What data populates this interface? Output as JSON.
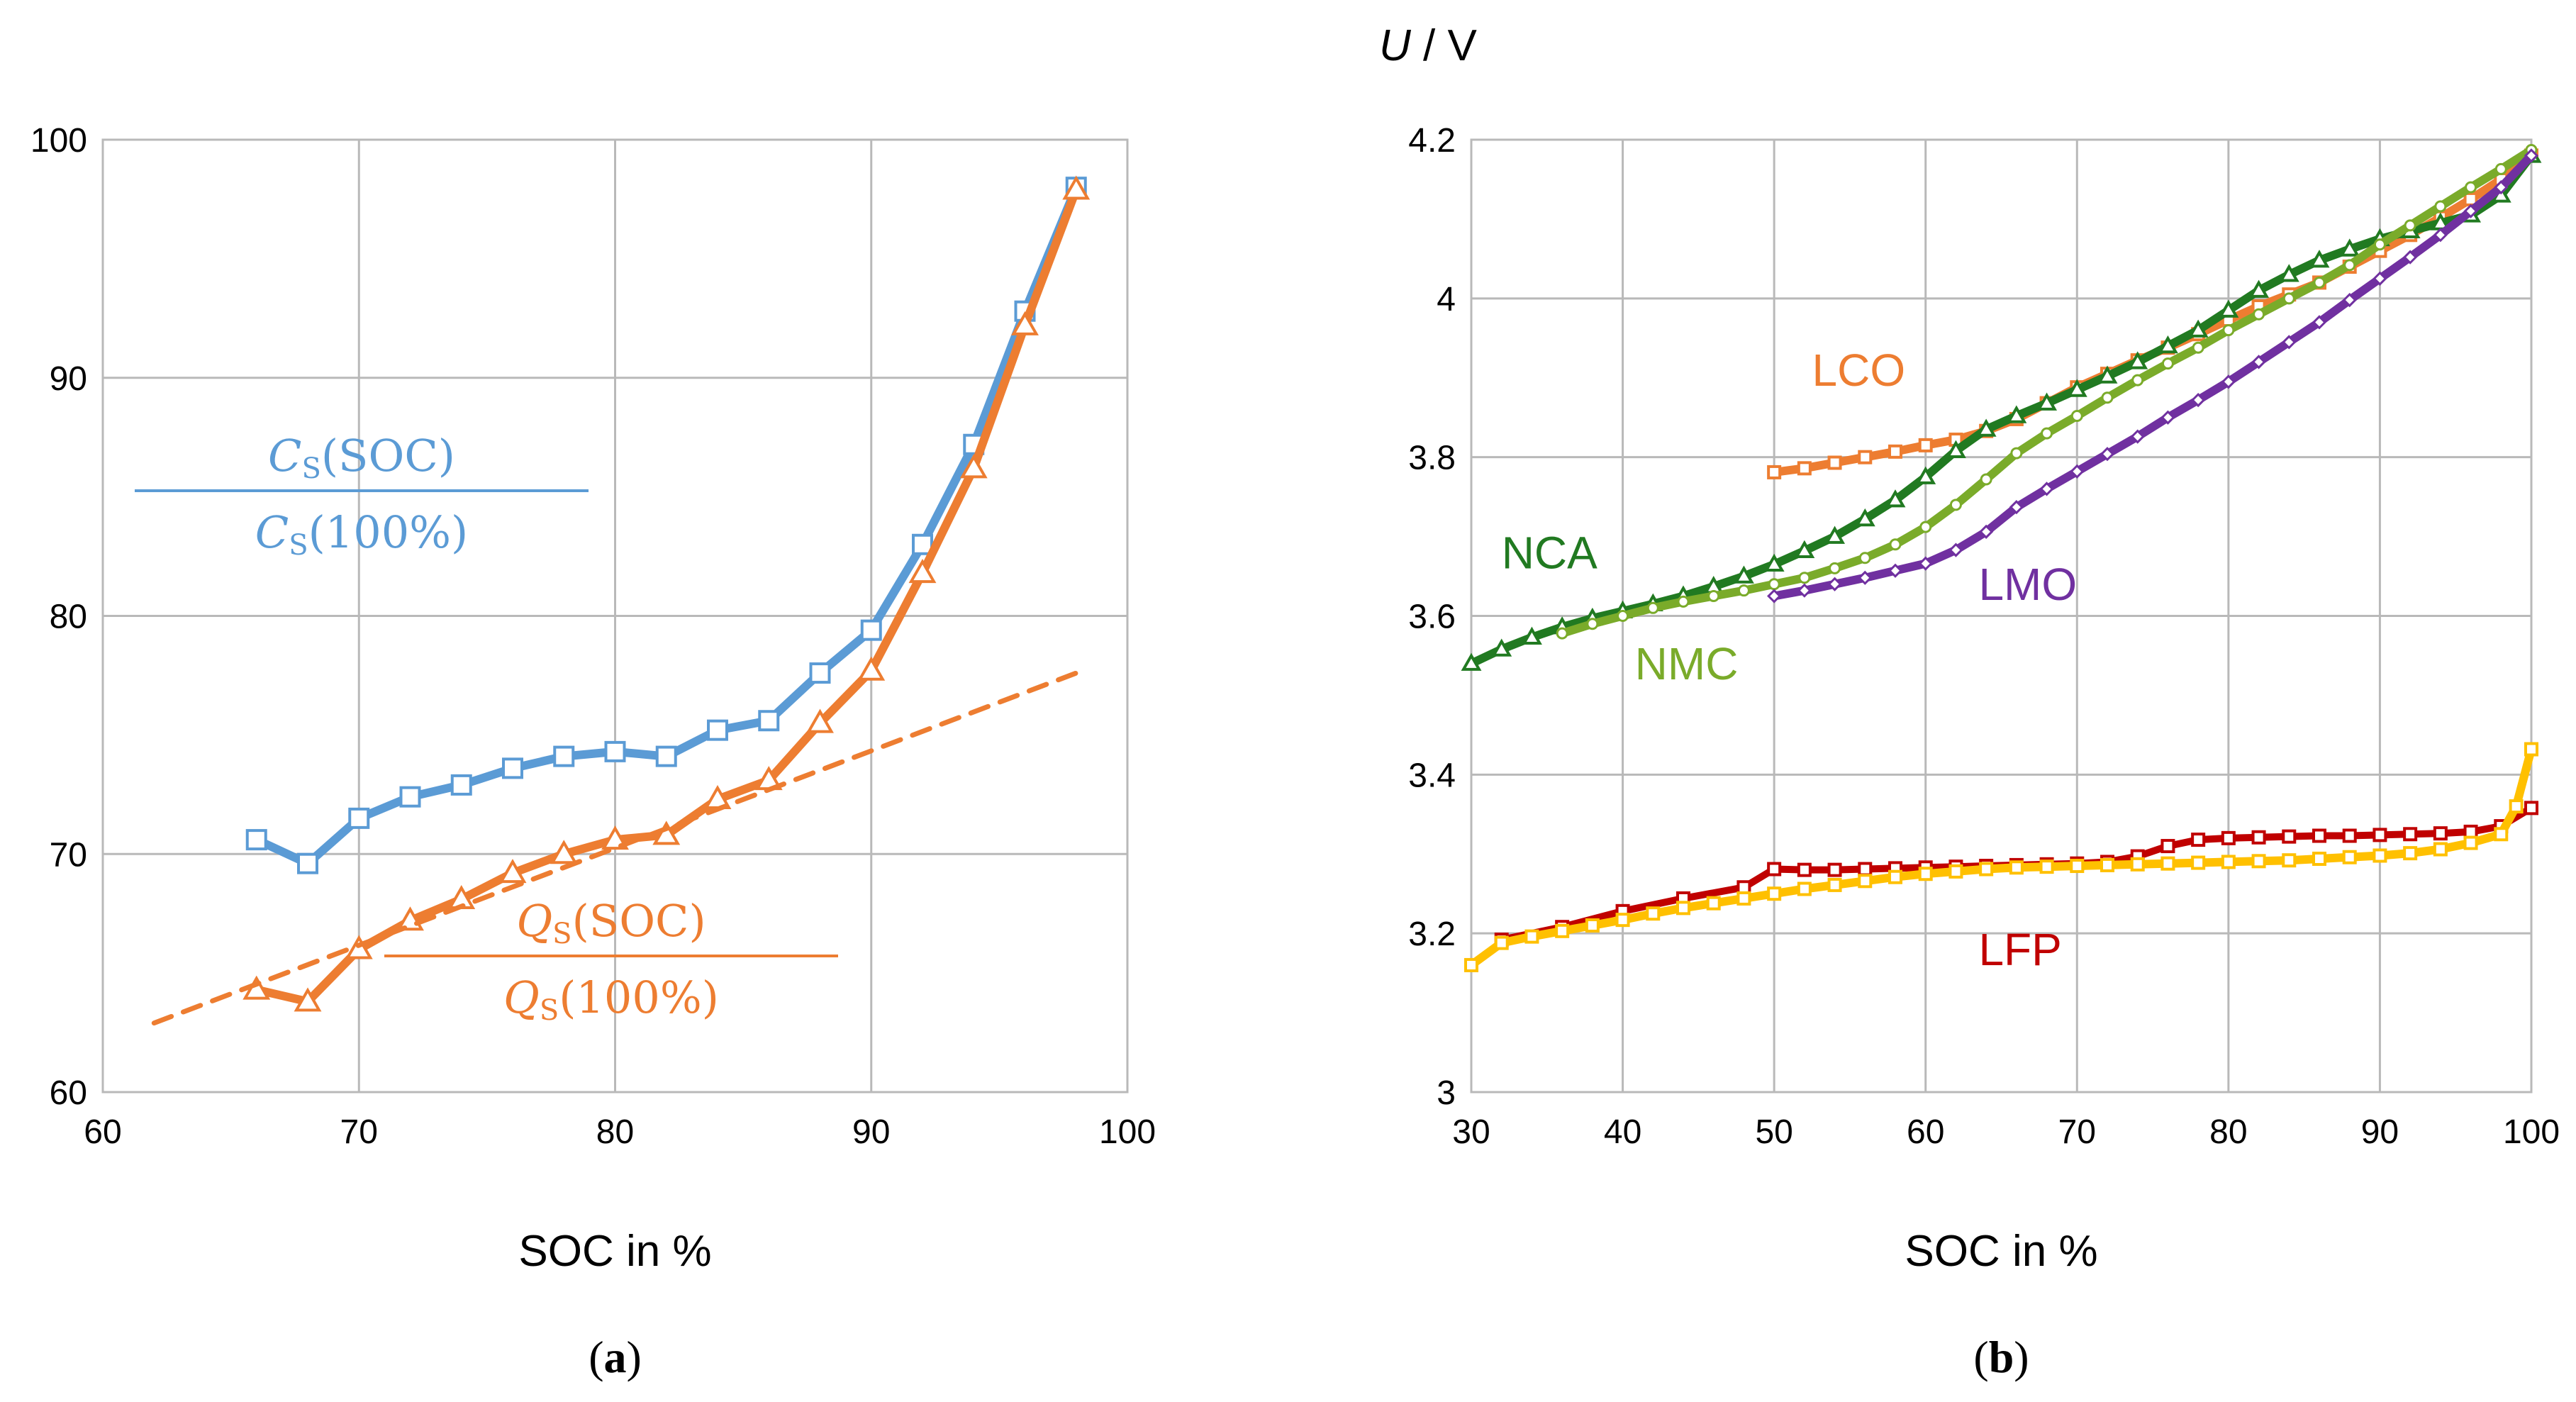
{
  "chart_data": [
    {
      "type": "line",
      "panel": "a",
      "caption_prefix": "(",
      "caption_letter": "a",
      "caption_suffix": ")",
      "xlabel": "SOC in %",
      "ylabel": "",
      "xlim": [
        60,
        100
      ],
      "ylim": [
        60,
        100
      ],
      "xticks": [
        60,
        70,
        80,
        90,
        100
      ],
      "yticks": [
        60,
        70,
        80,
        90,
        100
      ],
      "grid": true,
      "fraction_labels": {
        "C": {
          "num_var": "C",
          "num_sub": "S",
          "num_arg": "(SOC)",
          "den_var": "C",
          "den_sub": "S",
          "den_arg": "(100%)",
          "color": "#5b9bd5"
        },
        "Q": {
          "num_var": "Q",
          "num_sub": "S",
          "num_arg": "(SOC)",
          "den_var": "Q",
          "den_sub": "S",
          "den_arg": "(100%)",
          "color": "#ed7d31"
        }
      },
      "series": [
        {
          "key": "C",
          "color": "#5b9bd5",
          "marker": "square",
          "x": [
            66,
            68,
            70,
            72,
            74,
            76,
            78,
            80,
            82,
            84,
            86,
            88,
            90,
            92,
            94,
            96,
            98
          ],
          "y": [
            70.6,
            69.6,
            71.5,
            72.4,
            72.9,
            73.6,
            74.1,
            74.3,
            74.1,
            75.2,
            75.6,
            77.6,
            79.4,
            83.0,
            87.2,
            92.8,
            98.0
          ]
        },
        {
          "key": "Q",
          "color": "#ed7d31",
          "marker": "triangle",
          "x": [
            66,
            68,
            70,
            72,
            74,
            76,
            78,
            80,
            82,
            84,
            86,
            88,
            90,
            92,
            94,
            96,
            98
          ],
          "y": [
            64.3,
            63.8,
            66.0,
            67.2,
            68.1,
            69.2,
            70.0,
            70.6,
            70.8,
            72.3,
            73.1,
            75.5,
            77.7,
            81.8,
            86.2,
            92.2,
            97.9
          ]
        },
        {
          "key": "Q-fit",
          "color": "#ed7d31",
          "marker": "none",
          "dashed": true,
          "x": [
            62,
            98
          ],
          "y": [
            62.9,
            77.6
          ]
        }
      ]
    },
    {
      "type": "line",
      "panel": "b",
      "caption_prefix": "(",
      "caption_letter": "b",
      "caption_suffix": ")",
      "xlabel": "SOC in %",
      "ylabel_var": "U",
      "ylabel_unit": " / V",
      "xlim": [
        30,
        100
      ],
      "ylim": [
        3.0,
        4.2
      ],
      "xticks": [
        30,
        40,
        50,
        60,
        70,
        80,
        90,
        100
      ],
      "yticks": [
        "3",
        "3.2",
        "3.4",
        "3.6",
        "3.8",
        "4",
        "4.2"
      ],
      "grid": true,
      "series": [
        {
          "name": "LCO",
          "color": "#ed7d31",
          "marker": "square",
          "x": [
            50,
            52,
            54,
            56,
            58,
            60,
            62,
            64,
            66,
            68,
            70,
            72,
            74,
            76,
            78,
            80,
            82,
            84,
            86,
            88,
            90,
            92,
            94,
            96,
            98,
            100
          ],
          "y": [
            3.781,
            3.786,
            3.793,
            3.8,
            3.807,
            3.815,
            3.822,
            3.833,
            3.848,
            3.868,
            3.888,
            3.905,
            3.922,
            3.938,
            3.955,
            3.973,
            3.99,
            4.005,
            4.02,
            4.04,
            4.06,
            4.08,
            4.102,
            4.125,
            4.15,
            4.18
          ]
        },
        {
          "name": "NCA",
          "color": "#217a21",
          "marker": "triangle",
          "x": [
            30,
            32,
            34,
            36,
            38,
            40,
            42,
            44,
            46,
            48,
            50,
            52,
            54,
            56,
            58,
            60,
            62,
            64,
            66,
            68,
            70,
            72,
            74,
            76,
            78,
            80,
            82,
            84,
            86,
            88,
            90,
            92,
            94,
            96,
            98,
            100
          ],
          "y": [
            3.54,
            3.558,
            3.573,
            3.586,
            3.597,
            3.606,
            3.615,
            3.625,
            3.637,
            3.65,
            3.665,
            3.682,
            3.7,
            3.722,
            3.746,
            3.775,
            3.808,
            3.835,
            3.852,
            3.868,
            3.885,
            3.902,
            3.92,
            3.94,
            3.96,
            3.985,
            4.01,
            4.03,
            4.048,
            4.062,
            4.075,
            4.085,
            4.095,
            4.105,
            4.13,
            4.18
          ]
        },
        {
          "name": "NMC",
          "color": "#7aab2a",
          "marker": "circle",
          "x": [
            36,
            38,
            40,
            42,
            44,
            46,
            48,
            50,
            52,
            54,
            56,
            58,
            60,
            62,
            64,
            66,
            68,
            70,
            72,
            74,
            76,
            78,
            80,
            82,
            84,
            86,
            88,
            90,
            92,
            94,
            96,
            98,
            100
          ],
          "y": [
            3.578,
            3.59,
            3.6,
            3.61,
            3.618,
            3.625,
            3.632,
            3.64,
            3.648,
            3.66,
            3.673,
            3.69,
            3.712,
            3.74,
            3.772,
            3.805,
            3.83,
            3.852,
            3.875,
            3.897,
            3.918,
            3.938,
            3.96,
            3.98,
            4.0,
            4.02,
            4.042,
            4.068,
            4.092,
            4.116,
            4.14,
            4.163,
            4.187
          ]
        },
        {
          "name": "LMO",
          "color": "#7030a0",
          "marker": "diamond",
          "x": [
            50,
            52,
            54,
            56,
            58,
            60,
            62,
            64,
            66,
            68,
            70,
            72,
            74,
            76,
            78,
            80,
            82,
            84,
            86,
            88,
            90,
            92,
            94,
            96,
            98,
            100
          ],
          "y": [
            3.625,
            3.632,
            3.64,
            3.648,
            3.657,
            3.666,
            3.683,
            3.706,
            3.737,
            3.76,
            3.782,
            3.804,
            3.826,
            3.85,
            3.872,
            3.895,
            3.92,
            3.945,
            3.97,
            3.998,
            4.025,
            4.052,
            4.08,
            4.11,
            4.14,
            4.18
          ]
        },
        {
          "name": "LFP",
          "color": "#c00000",
          "marker": "square",
          "dashed_part": true,
          "x": [
            32,
            36,
            40,
            44,
            48,
            50,
            52,
            54,
            56,
            58,
            60,
            62,
            64,
            66,
            68,
            70,
            72,
            74,
            76,
            78,
            80,
            82,
            84,
            86,
            88,
            90,
            92,
            94,
            96,
            98,
            100
          ],
          "y": [
            3.192,
            3.208,
            3.228,
            3.244,
            3.258,
            3.281,
            3.28,
            3.28,
            3.281,
            3.282,
            3.283,
            3.284,
            3.285,
            3.286,
            3.287,
            3.288,
            3.29,
            3.297,
            3.31,
            3.318,
            3.32,
            3.321,
            3.322,
            3.323,
            3.323,
            3.324,
            3.325,
            3.326,
            3.328,
            3.335,
            3.358
          ]
        },
        {
          "name": "LFP-2",
          "color": "#ffc000",
          "marker": "square",
          "x": [
            30,
            32,
            34,
            36,
            38,
            40,
            42,
            44,
            46,
            48,
            50,
            52,
            54,
            56,
            58,
            60,
            62,
            64,
            66,
            68,
            70,
            72,
            74,
            76,
            78,
            80,
            82,
            84,
            86,
            88,
            90,
            92,
            94,
            96,
            98,
            99,
            100
          ],
          "y": [
            3.16,
            3.188,
            3.196,
            3.203,
            3.21,
            3.217,
            3.225,
            3.232,
            3.238,
            3.244,
            3.25,
            3.256,
            3.261,
            3.266,
            3.271,
            3.275,
            3.278,
            3.281,
            3.283,
            3.284,
            3.285,
            3.286,
            3.287,
            3.288,
            3.289,
            3.29,
            3.291,
            3.292,
            3.294,
            3.296,
            3.298,
            3.301,
            3.306,
            3.314,
            3.325,
            3.36,
            3.432
          ]
        }
      ],
      "labels": [
        {
          "text": "LCO",
          "color": "#ed7d31",
          "x": 52.5,
          "y": 3.89
        },
        {
          "text": "NCA",
          "color": "#217a21",
          "x": 32.0,
          "y": 3.66
        },
        {
          "text": "NMC",
          "color": "#7aab2a",
          "x": 40.8,
          "y": 3.52
        },
        {
          "text": "LMO",
          "color": "#7030a0",
          "x": 63.5,
          "y": 3.62
        },
        {
          "text": "LFP",
          "color": "#c00000",
          "x": 63.5,
          "y": 3.16
        }
      ]
    }
  ]
}
